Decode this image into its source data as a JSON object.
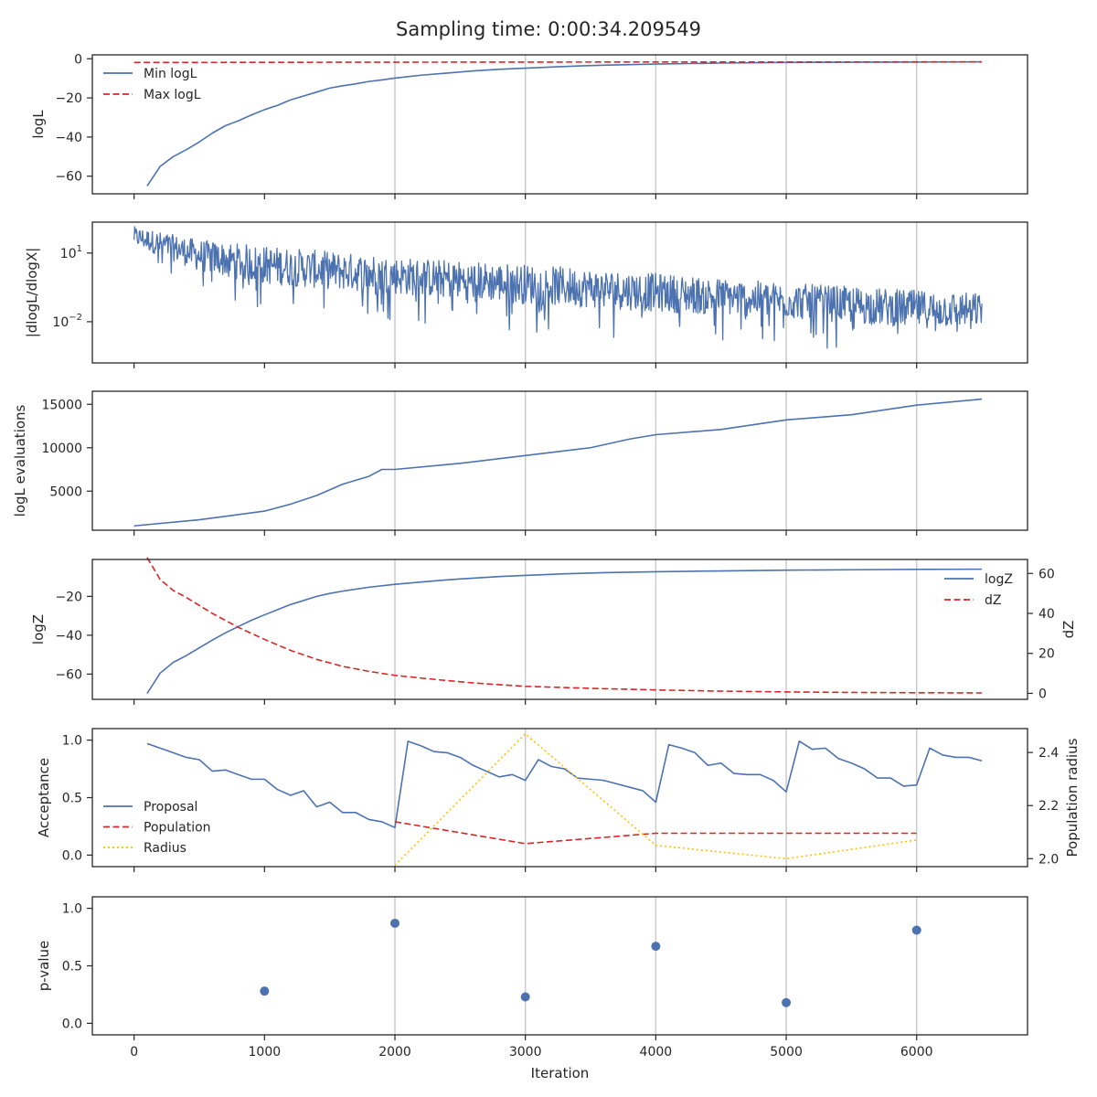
{
  "title": "Sampling time: 0:00:34.209549",
  "colors": {
    "blue": "#4c72b0",
    "red": "#d62728",
    "gold": "#ffc000",
    "axis": "#262626",
    "grid": "#c8c8c8"
  },
  "chart_data": [
    {
      "id": "loglikelihood",
      "type": "line",
      "ylabel": "logL",
      "ylim": [
        -69,
        2
      ],
      "yticks": [
        0,
        -20,
        -40,
        -60
      ],
      "ytick_labels": [
        "0",
        "−20",
        "−40",
        "−60"
      ],
      "legend": {
        "placement": "upper-left",
        "entries": [
          "Min logL",
          "Max logL"
        ]
      },
      "series": [
        {
          "name": "Min logL",
          "color": "blue",
          "style": "solid",
          "x": [
            100,
            200,
            300,
            400,
            500,
            600,
            700,
            800,
            900,
            1000,
            1100,
            1200,
            1300,
            1400,
            1500,
            1600,
            1700,
            1800,
            1900,
            2000,
            2200,
            2400,
            2600,
            2800,
            3000,
            3200,
            3400,
            3600,
            3800,
            4000,
            4500,
            5000,
            5500,
            6000,
            6500
          ],
          "y": [
            -65,
            -55,
            -50,
            -46.5,
            -42.5,
            -38,
            -34.2,
            -31.7,
            -28.7,
            -26,
            -23.8,
            -21,
            -19,
            -17,
            -15,
            -13.8,
            -12.8,
            -11.6,
            -10.8,
            -9.9,
            -8.4,
            -7.3,
            -6.2,
            -5.4,
            -4.8,
            -4.2,
            -3.7,
            -3.3,
            -3.0,
            -2.7,
            -2.2,
            -1.9,
            -1.75,
            -1.7,
            -1.6
          ]
        },
        {
          "name": "Max logL",
          "color": "red",
          "style": "dashed",
          "x": [
            0,
            2000,
            4000,
            6500
          ],
          "y": [
            -1.9,
            -1.75,
            -1.65,
            -1.6
          ]
        }
      ]
    },
    {
      "id": "dlogl_dlogx",
      "type": "line",
      "ylabel": "|dlogL/dlogX|",
      "yscale": "log",
      "ylim_log10": [
        -3.8,
        2.35
      ],
      "yticks_log10": [
        1,
        -2
      ],
      "ytick_labels": [
        {
          "base": "10",
          "exp": "1"
        },
        {
          "base": "10",
          "exp": "−2"
        }
      ],
      "series": [
        {
          "name": "",
          "color": "blue",
          "style": "solid",
          "envelope": "noisy trace between upper and lower log10 bounds",
          "x_range": [
            0,
            6500
          ],
          "points": 1300,
          "upper_log10": {
            "x": [
              0,
              500,
              1000,
              2000,
              3000,
              4000,
              5000,
              6000,
              6500
            ],
            "y": [
              2.3,
              1.8,
              1.6,
              1.1,
              0.8,
              0.4,
              -0.05,
              -0.35,
              -0.5
            ]
          },
          "lower_log10": {
            "x": [
              0,
              500,
              1000,
              2000,
              3000,
              4000,
              5000,
              6000,
              6500
            ],
            "y": [
              0.7,
              -0.8,
              -1.6,
              -2.0,
              -2.5,
              -2.8,
              -3.0,
              -3.5,
              -3.3
            ]
          }
        }
      ]
    },
    {
      "id": "logl_evaluations",
      "type": "line",
      "ylabel": "logL evaluations",
      "ylim": [
        500,
        16500
      ],
      "yticks": [
        5000,
        10000,
        15000
      ],
      "ytick_labels": [
        "5000",
        "10000",
        "15000"
      ],
      "series": [
        {
          "name": "",
          "color": "blue",
          "style": "solid",
          "x": [
            0,
            500,
            1000,
            1200,
            1400,
            1600,
            1800,
            1900,
            2000,
            2500,
            3000,
            3500,
            3800,
            4000,
            4500,
            5000,
            5500,
            6000,
            6500
          ],
          "y": [
            1000,
            1700,
            2700,
            3500,
            4500,
            5800,
            6700,
            7500,
            7500,
            8200,
            9100,
            10000,
            11000,
            11500,
            12100,
            13200,
            13800,
            14900,
            15600
          ]
        }
      ]
    },
    {
      "id": "evidence",
      "type": "line",
      "ylabel": "logZ",
      "ylabel_right": "dZ",
      "ylim": [
        -73,
        -1
      ],
      "yticks": [
        -20,
        -40,
        -60
      ],
      "ytick_labels": [
        "−20",
        "−40",
        "−60"
      ],
      "ylim_right": [
        -3,
        67
      ],
      "yticks_right": [
        0,
        20,
        40,
        60
      ],
      "ytick_labels_right": [
        "0",
        "20",
        "40",
        "60"
      ],
      "legend": {
        "placement": "upper-right",
        "entries": [
          "logZ",
          "dZ"
        ]
      },
      "series": [
        {
          "name": "logZ",
          "color": "blue",
          "style": "solid",
          "axis": "left",
          "x": [
            100,
            200,
            300,
            400,
            500,
            600,
            700,
            800,
            900,
            1000,
            1200,
            1400,
            1500,
            1600,
            1800,
            2000,
            2200,
            2400,
            2600,
            2800,
            3000,
            3300,
            3600,
            4000,
            4500,
            5000,
            5500,
            6000,
            6500
          ],
          "y": [
            -70,
            -59.5,
            -54,
            -50.5,
            -46.5,
            -42.5,
            -38.8,
            -35.5,
            -32.3,
            -29.5,
            -24.2,
            -20,
            -18.5,
            -17.3,
            -15.3,
            -13.8,
            -12.6,
            -11.5,
            -10.6,
            -9.8,
            -9.2,
            -8.4,
            -7.8,
            -7.3,
            -6.9,
            -6.5,
            -6.3,
            -6.1,
            -6.0
          ]
        },
        {
          "name": "dZ",
          "color": "red",
          "style": "dashed",
          "axis": "right",
          "x": [
            100,
            200,
            300,
            400,
            500,
            600,
            700,
            800,
            900,
            1000,
            1200,
            1400,
            1600,
            1800,
            2000,
            2300,
            2600,
            3000,
            3500,
            4000,
            4500,
            5000,
            5500,
            6000,
            6500
          ],
          "y": [
            68,
            57,
            51.5,
            48,
            44,
            40,
            36.5,
            33,
            30,
            27,
            21.5,
            17,
            13.5,
            11,
            9,
            7,
            5.2,
            3.5,
            2.5,
            1.7,
            1.1,
            0.7,
            0.45,
            0.3,
            0.2
          ]
        }
      ]
    },
    {
      "id": "acceptance",
      "type": "line",
      "ylabel": "Acceptance",
      "ylabel_right": "Population radius",
      "ylim": [
        -0.1,
        1.1
      ],
      "yticks": [
        0,
        0.5,
        1
      ],
      "ytick_labels": [
        "0.0",
        "0.5",
        "1.0"
      ],
      "ylim_right": [
        1.97,
        2.49
      ],
      "yticks_right": [
        2.0,
        2.2,
        2.4
      ],
      "ytick_labels_right": [
        "2.0",
        "2.2",
        "2.4"
      ],
      "legend": {
        "placement": "lower-left",
        "entries": [
          "Proposal",
          "Population",
          "Radius"
        ]
      },
      "series": [
        {
          "name": "Proposal",
          "color": "blue",
          "style": "solid",
          "axis": "left",
          "x": [
            100,
            200,
            300,
            400,
            500,
            600,
            700,
            800,
            900,
            1000,
            1100,
            1200,
            1300,
            1400,
            1500,
            1600,
            1700,
            1800,
            1900,
            2000,
            2100,
            2200,
            2300,
            2400,
            2500,
            2600,
            2700,
            2800,
            2900,
            3000,
            3100,
            3200,
            3300,
            3400,
            3500,
            3600,
            3700,
            3800,
            3900,
            4000,
            4100,
            4200,
            4300,
            4400,
            4500,
            4600,
            4700,
            4800,
            4900,
            5000,
            5100,
            5200,
            5300,
            5400,
            5500,
            5600,
            5700,
            5800,
            5900,
            6000,
            6100,
            6200,
            6300,
            6400,
            6500
          ],
          "y": [
            0.97,
            0.93,
            0.89,
            0.85,
            0.83,
            0.73,
            0.74,
            0.7,
            0.66,
            0.66,
            0.57,
            0.52,
            0.56,
            0.42,
            0.46,
            0.37,
            0.37,
            0.31,
            0.29,
            0.24,
            0.99,
            0.95,
            0.9,
            0.89,
            0.85,
            0.78,
            0.73,
            0.68,
            0.7,
            0.65,
            0.83,
            0.77,
            0.75,
            0.67,
            0.66,
            0.65,
            0.62,
            0.59,
            0.56,
            0.46,
            0.96,
            0.93,
            0.89,
            0.78,
            0.8,
            0.71,
            0.7,
            0.7,
            0.65,
            0.55,
            0.99,
            0.92,
            0.93,
            0.84,
            0.8,
            0.75,
            0.67,
            0.67,
            0.6,
            0.61,
            0.93,
            0.87,
            0.85,
            0.85,
            0.82
          ]
        },
        {
          "name": "Population",
          "color": "red",
          "style": "dashed",
          "axis": "left",
          "x": [
            2000,
            3000,
            4000,
            5000,
            6000
          ],
          "y": [
            0.29,
            0.1,
            0.19,
            0.19,
            0.19
          ]
        },
        {
          "name": "Radius",
          "color": "gold",
          "style": "dotted",
          "axis": "right",
          "x": [
            2000,
            3000,
            4000,
            5000,
            6000
          ],
          "y": [
            1.975,
            2.47,
            2.05,
            2.0,
            2.07
          ]
        }
      ]
    },
    {
      "id": "pvalue",
      "type": "scatter",
      "ylabel": "p-value",
      "xlabel": "Iteration",
      "ylim": [
        -0.1,
        1.1
      ],
      "yticks": [
        0,
        0.5,
        1
      ],
      "ytick_labels": [
        "0.0",
        "0.5",
        "1.0"
      ],
      "xlim": [
        -320,
        6850
      ],
      "xticks": [
        0,
        1000,
        2000,
        3000,
        4000,
        5000,
        6000
      ],
      "xtick_labels": [
        "0",
        "1000",
        "2000",
        "3000",
        "4000",
        "5000",
        "6000"
      ],
      "series": [
        {
          "name": "",
          "color": "blue",
          "x": [
            1000,
            2000,
            3000,
            4000,
            5000,
            6000
          ],
          "y": [
            0.28,
            0.87,
            0.23,
            0.67,
            0.18,
            0.81
          ]
        }
      ]
    }
  ]
}
